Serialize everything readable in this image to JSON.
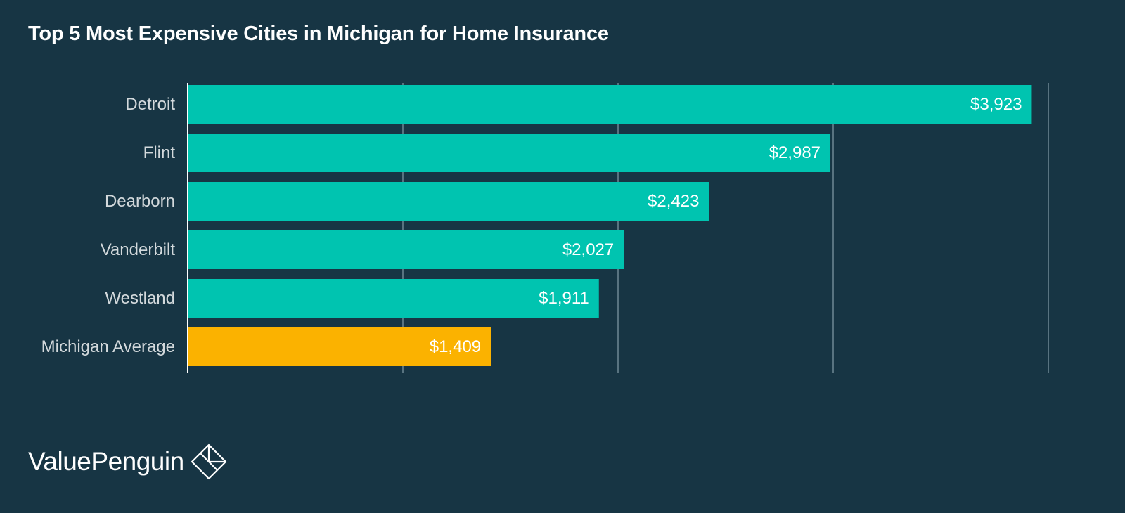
{
  "chart_data": {
    "type": "bar",
    "orientation": "horizontal",
    "title": "Top 5 Most Expensive Cities in Michigan for Home Insurance",
    "xlabel": "",
    "ylabel": "",
    "categories": [
      "Detroit",
      "Flint",
      "Dearborn",
      "Vanderbilt",
      "Westland",
      "Michigan Average"
    ],
    "values": [
      3923,
      2987,
      2423,
      2027,
      1911,
      1409
    ],
    "value_labels": [
      "$3,923",
      "$2,987",
      "$2,423",
      "$2,027",
      "$1,911",
      "$1,409"
    ],
    "xlim": [
      0,
      4000
    ],
    "grid_values": [
      0,
      1000,
      2000,
      3000,
      4000
    ],
    "grid": true,
    "legend": "none",
    "colors": {
      "background": "#173544",
      "bar": "#00c4b0",
      "highlight_bar": "#fbb200",
      "gridline": "#6f8893",
      "category_text": "#d3d9dc",
      "value_text": "#ffffff"
    },
    "highlight_category": "Michigan Average"
  },
  "brand": {
    "name": "ValuePenguin",
    "logo_icon": "diamond-logo-icon"
  }
}
